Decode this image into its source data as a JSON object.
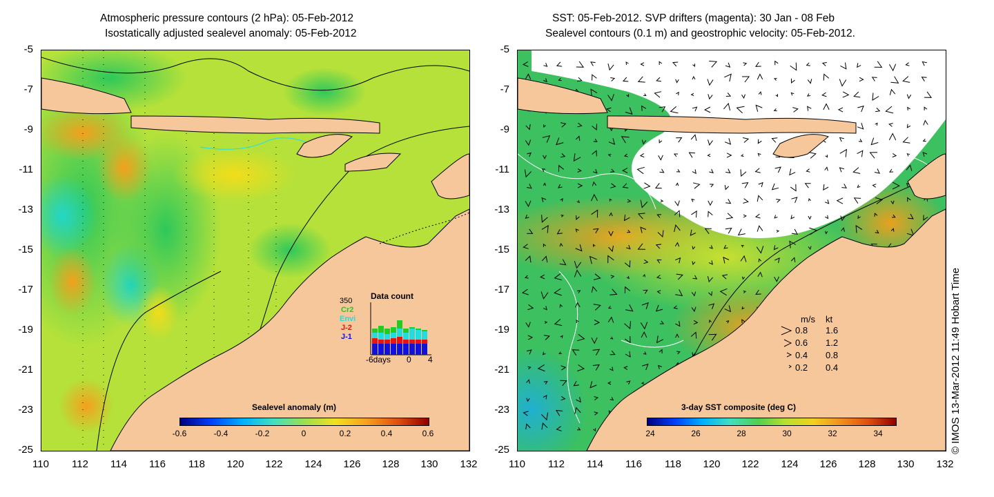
{
  "left_panel": {
    "title_line1": "Atmospheric pressure contours (2 hPa): 05-Feb-2012",
    "title_line2": "Isostatically adjusted sealevel anomaly: 05-Feb-2012",
    "colorbar": {
      "label": "Sealevel anomaly (m)",
      "ticks": [
        "-0.6",
        "-0.4",
        "-0.2",
        "0",
        "0.2",
        "0.4",
        "0.6"
      ]
    },
    "data_count": {
      "title": "Data count",
      "max_label": "350",
      "satellites": [
        {
          "name": "Cr2",
          "color": "#22cc22"
        },
        {
          "name": "Envi",
          "color": "#22dddd"
        },
        {
          "name": "J-2",
          "color": "#ee1111"
        },
        {
          "name": "J-1",
          "color": "#1111dd"
        }
      ],
      "x_labels": [
        "-6days",
        "0",
        "4"
      ]
    }
  },
  "right_panel": {
    "title_line1": "SST: 05-Feb-2012. SVP drifters (magenta): 30 Jan - 08 Feb",
    "title_line2": "Sealevel contours (0.1 m) and geostrophic velocity: 05-Feb-2012.",
    "colorbar": {
      "label": "3-day SST composite (deg C)",
      "ticks": [
        "24",
        "26",
        "28",
        "30",
        "32",
        "34"
      ]
    },
    "velocity_legend": {
      "header_ms": "m/s",
      "header_kt": "kt",
      "rows": [
        {
          "ms": "0.8",
          "kt": "1.6"
        },
        {
          "ms": "0.6",
          "kt": "1.2"
        },
        {
          "ms": "0.4",
          "kt": "0.8"
        },
        {
          "ms": "0.2",
          "kt": "0.4"
        }
      ]
    }
  },
  "axes": {
    "y_labels": [
      "-5",
      "-7",
      "-9",
      "-11",
      "-13",
      "-15",
      "-17",
      "-19",
      "-21",
      "-23",
      "-25"
    ],
    "x_labels": [
      "110",
      "112",
      "114",
      "116",
      "118",
      "120",
      "122",
      "124",
      "126",
      "128",
      "130",
      "132"
    ]
  },
  "credit": "© IMOS 13-Mar-2012 11:49 Hobart Time",
  "colors": {
    "land": "#f7c79c",
    "contour_cyan": "#33dddd",
    "drifter_magenta": "#ee33ee"
  }
}
